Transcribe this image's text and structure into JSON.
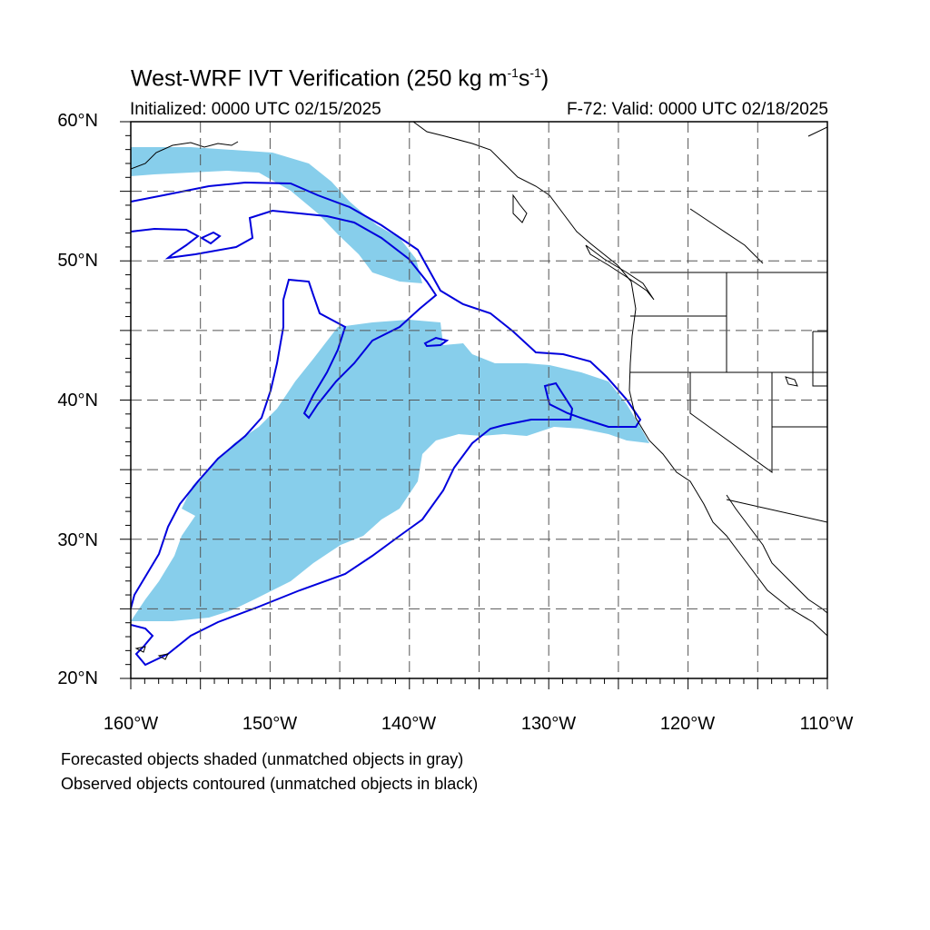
{
  "title": {
    "text": "West-WRF IVT Verification (250 kg m",
    "exp1": "-1",
    "mid": "s",
    "exp2": "-1",
    "close": ")"
  },
  "subtitle_left": "Initialized: 0000 UTC 02/15/2025",
  "subtitle_right": "F-72: Valid: 0000 UTC 02/18/2025",
  "lat_labels": [
    "60°N",
    "50°N",
    "40°N",
    "30°N",
    "20°N"
  ],
  "lon_labels": [
    "160°W",
    "150°W",
    "140°W",
    "130°W",
    "120°W",
    "110°W"
  ],
  "captions": [
    "Forecasted objects shaded (unmatched objects in gray)",
    "Observed objects contoured (unmatched objects in black)"
  ],
  "colors": {
    "forecast_fill": "#87ceeb",
    "observed_contour": "#0000dd",
    "coastline": "#000000",
    "grid": "#555555"
  },
  "map_extent": {
    "lon": [
      -160,
      -110
    ],
    "lat": [
      20,
      60
    ]
  }
}
